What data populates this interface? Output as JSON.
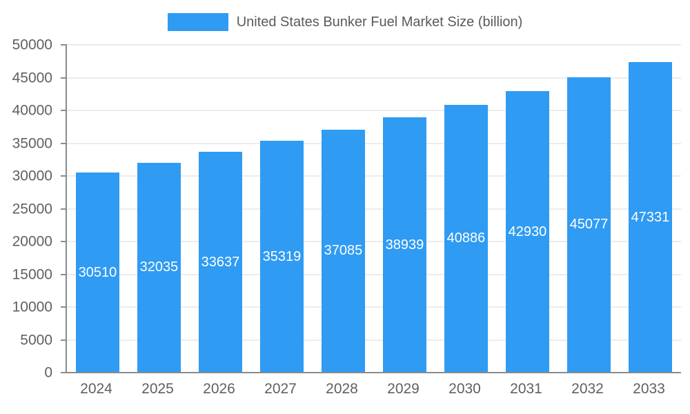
{
  "legend": {
    "label": "United States Bunker Fuel Market Size (billion)",
    "swatch_color": "#2f9bf3"
  },
  "chart_data": {
    "type": "bar",
    "title": "United States Bunker Fuel Market Size (billion)",
    "categories": [
      "2024",
      "2025",
      "2026",
      "2027",
      "2028",
      "2029",
      "2030",
      "2031",
      "2032",
      "2033"
    ],
    "values": [
      30510,
      32035,
      33637,
      35319,
      37085,
      38939,
      40886,
      42930,
      45077,
      47331
    ],
    "xlabel": "",
    "ylabel": "",
    "ylim": [
      0,
      50000
    ],
    "ytick_step": 5000,
    "grid": true,
    "legend_position": "top",
    "bar_color": "#2f9bf3",
    "value_label_color": "#ffffff",
    "axis_text_color": "#606060",
    "grid_color": "#ececec"
  }
}
